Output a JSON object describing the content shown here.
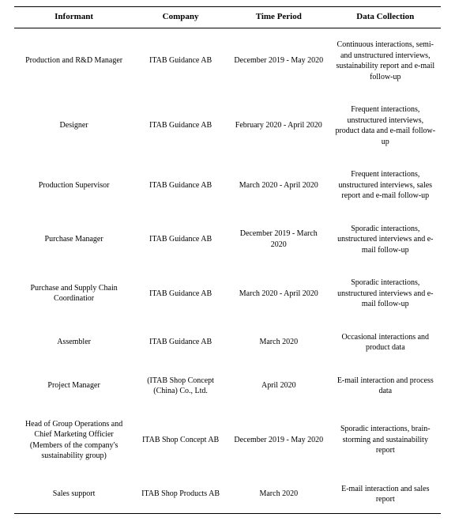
{
  "table": {
    "columns": [
      "Informant",
      "Company",
      "Time Period",
      "Data Collection"
    ],
    "rows": [
      {
        "informant": "Production and R&D Manager",
        "company": "ITAB Guidance AB",
        "period": "December 2019 - May 2020",
        "collection": "Continuous interactions, semi- and unstructured interviews, sustainability report and e-mail follow-up"
      },
      {
        "informant": "Designer",
        "company": "ITAB Guidance AB",
        "period": "February 2020 - April 2020",
        "collection": "Frequent interactions, unstructured interviews, product data and e-mail follow-up"
      },
      {
        "informant": "Production Supervisor",
        "company": "ITAB Guidance AB",
        "period": "March 2020 - April 2020",
        "collection": "Frequent interactions, unstructured interviews, sales report and e-mail follow-up"
      },
      {
        "informant": "Purchase Manager",
        "company": "ITAB Guidance AB",
        "period": "December 2019 - March 2020",
        "collection": "Sporadic interactions, unstructured interviews and e-mail follow-up"
      },
      {
        "informant": "Purchase and Supply Chain Coordinatior",
        "company": "ITAB Guidance AB",
        "period": "March 2020 - April 2020",
        "collection": "Sporadic interactions, unstructured interviews and e-mail follow-up"
      },
      {
        "informant": "Assembler",
        "company": "ITAB Guidance AB",
        "period": "March 2020",
        "collection": "Occasional interactions and product data"
      },
      {
        "informant": "Project Manager",
        "company": "(ITAB Shop Concept (China) Co., Ltd.",
        "period": "April 2020",
        "collection": "E-mail interaction and process data"
      },
      {
        "informant": "Head of Group Operations and Chief Marketing Officier (Members of the company's sustainability group)",
        "company": "ITAB Shop Concept AB",
        "period": "December 2019 - May 2020",
        "collection": "Sporadic interactions, brain-storming and sustainability report"
      },
      {
        "informant": "Sales support",
        "company": "ITAB Shop Products AB",
        "period": "March 2020",
        "collection": "E-mail interaction and sales report"
      }
    ]
  }
}
